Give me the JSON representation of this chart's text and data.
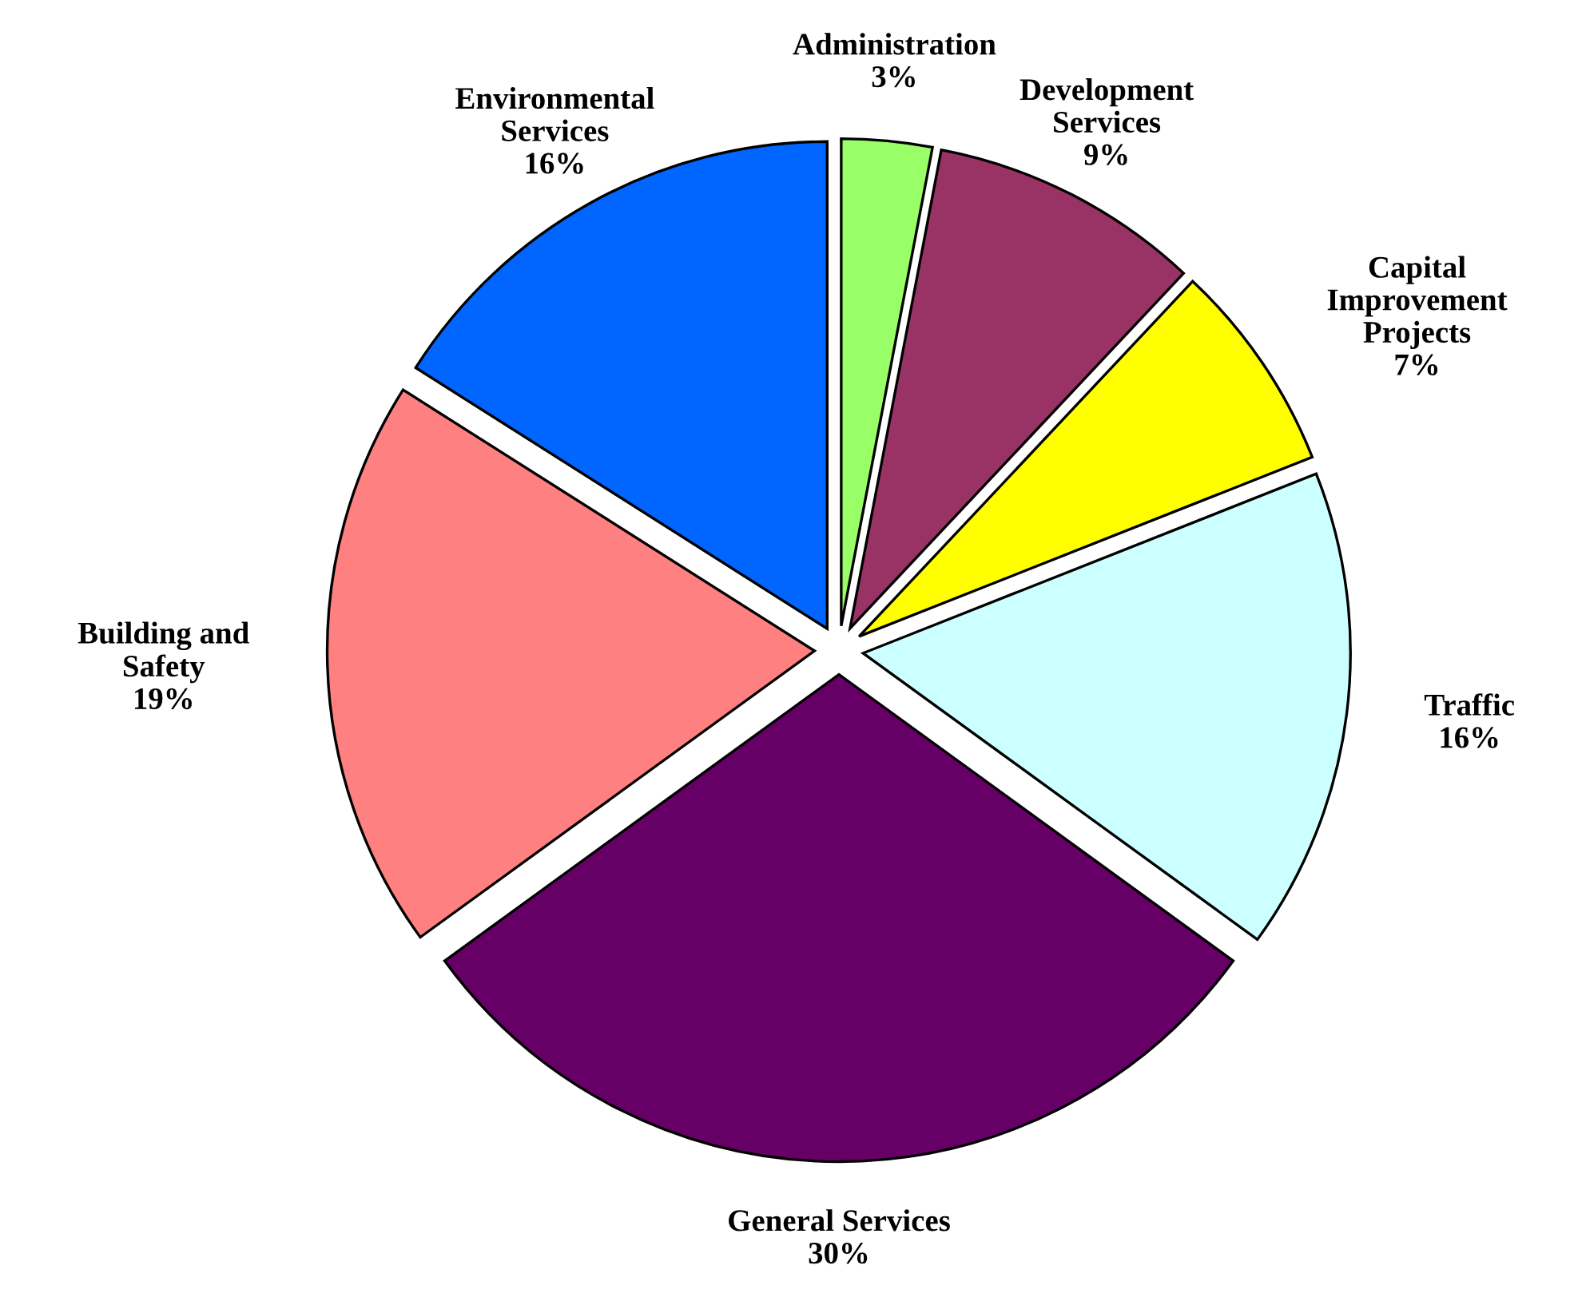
{
  "chart_data": {
    "type": "pie",
    "categories": [
      "Administration",
      "Development\nServices",
      "Capital\nImprovement\nProjects",
      "Traffic",
      "General Services",
      "Building and\nSafety",
      "Environmental\nServices"
    ],
    "values": [
      3,
      9,
      7,
      16,
      30,
      19,
      16
    ],
    "value_labels": [
      "3%",
      "9%",
      "7%",
      "16%",
      "30%",
      "19%",
      "16%"
    ],
    "colors": [
      "#99ff66",
      "#993366",
      "#ffff00",
      "#ccffff",
      "#660066",
      "#ff8080",
      "#0066ff"
    ],
    "legend": false
  }
}
